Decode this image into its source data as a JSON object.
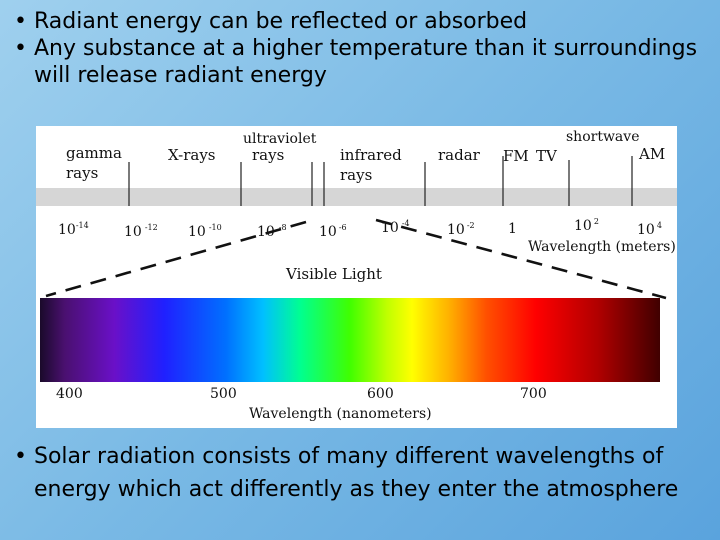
{
  "bullets_top": [
    {
      "glyph": "•",
      "text": "Radiant energy can be reflected or absorbed"
    },
    {
      "glyph": "•",
      "text": "Any substance at a higher temperature than it surroundings will release radiant energy"
    }
  ],
  "figure": {
    "bands": [
      "gamma",
      "rays",
      "X-rays",
      "ultraviolet",
      "rays",
      "infrared",
      "rays",
      "radar",
      "shortwave",
      "FM",
      "TV",
      "AM"
    ],
    "wavelength_ticks": [
      {
        "base": "10",
        "exp": "-14"
      },
      {
        "base": "10",
        "exp": "-12"
      },
      {
        "base": "10",
        "exp": "-10"
      },
      {
        "base": "10",
        "exp": "-8"
      },
      {
        "base": "10",
        "exp": "-6"
      },
      {
        "base": "10",
        "exp": "-4"
      },
      {
        "base": "10",
        "exp": "-2"
      },
      {
        "base": "1",
        "exp": ""
      },
      {
        "base": "10",
        "exp": "2"
      },
      {
        "base": "10",
        "exp": "4"
      }
    ],
    "wavelength_meters_label": "Wavelength (meters)",
    "visible_light_label": "Visible Light",
    "nm_ticks": [
      "400",
      "500",
      "600",
      "700"
    ],
    "wavelength_nm_label": "Wavelength (nanometers)"
  },
  "bullets_bottom": [
    {
      "glyph": "•",
      "text": "Solar radiation consists of many different wavelengths of energy which act differently as they enter the atmosphere"
    }
  ]
}
